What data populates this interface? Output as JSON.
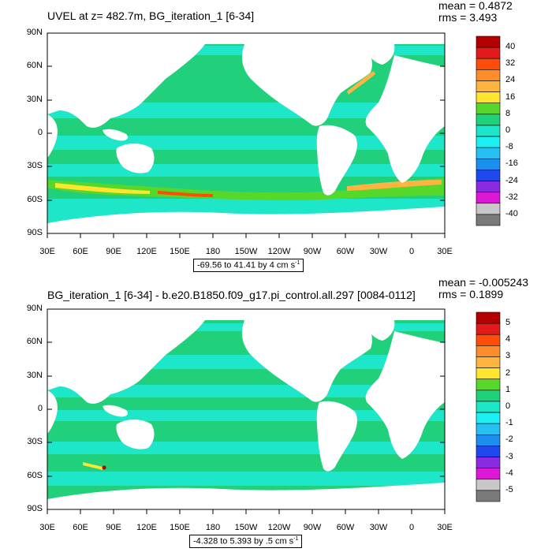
{
  "panels": [
    {
      "title": "UVEL at z= 482.7m, BG_iteration_1 [6-34]",
      "stats": {
        "mean": "mean = 0.4872",
        "rms": "rms = 3.493"
      },
      "range_text": "-69.56 to 41.41 by 4 cm s",
      "range_unit_exp": "-1",
      "colorbar_labels": [
        "40",
        "32",
        "24",
        "16",
        "8",
        "0",
        "-8",
        "-16",
        "-24",
        "-32",
        "-40"
      ],
      "colors": [
        "#b40000",
        "#e31a1c",
        "#fe4d0a",
        "#fd8c2b",
        "#feb43f",
        "#fee52f",
        "#55d82a",
        "#20d07a",
        "#1ee6c8",
        "#1eeff2",
        "#27c0f3",
        "#1b8fee",
        "#1f49ec",
        "#8a2be2",
        "#dd17d6",
        "#c8c8c8",
        "#7a7a7a"
      ]
    },
    {
      "title": "BG_iteration_1 [6-34] - b.e20.B1850.f09_g17.pi_control.all.297 [0084-0112]",
      "stats": {
        "mean": "mean = -0.005243",
        "rms": "rms = 0.1899"
      },
      "range_text": "-4.328 to 5.393 by .5 cm s",
      "range_unit_exp": "-1",
      "colorbar_labels": [
        "5",
        "4",
        "3",
        "2",
        "1",
        "0",
        "-1",
        "-2",
        "-3",
        "-4",
        "-5"
      ],
      "colors": [
        "#b40000",
        "#e31a1c",
        "#fe4d0a",
        "#fd8c2b",
        "#feb43f",
        "#fee52f",
        "#55d82a",
        "#20d07a",
        "#1ee6c8",
        "#1eeff2",
        "#27c0f3",
        "#1b8fee",
        "#1f49ec",
        "#8a2be2",
        "#dd17d6",
        "#c8c8c8",
        "#7a7a7a"
      ]
    }
  ],
  "lat_labels": [
    "90N",
    "60N",
    "30N",
    "0",
    "30S",
    "60S",
    "90S"
  ],
  "lon_labels": [
    "30E",
    "60E",
    "90E",
    "120E",
    "150E",
    "180",
    "150W",
    "120W",
    "90W",
    "60W",
    "30W",
    "0",
    "30E"
  ]
}
